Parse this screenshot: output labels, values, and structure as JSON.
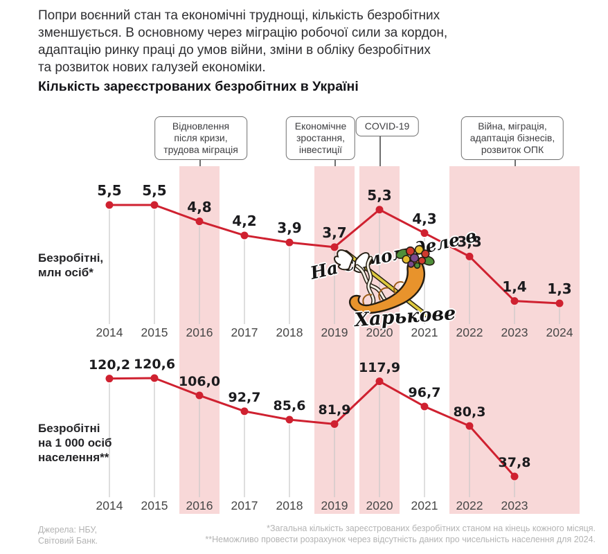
{
  "header": {
    "paragraph": "Попри воєнний стан та економічні труднощі, кількість безробітних\nзменшується. В основному через міграцію робочої сили за кордон,\nадаптацію ринку праці до умов війни, зміни в обліку безробітних\nта розвиток нових галузей економіки."
  },
  "title": "Кількість зареєстрованих безробітних в Україні",
  "colors": {
    "line_red": "#cf2130",
    "point_red": "#cf2130",
    "band_pink": "#f8d8d8",
    "label_dark": "#1b1b1e",
    "year_gray": "#474747",
    "guide_gray": "#c9c9c9",
    "box_border": "#6e6e6e",
    "footer_gray": "#b3b3b3"
  },
  "annotations": [
    {
      "lines": [
        "Відновлення",
        "після кризи,",
        "трудова міграція"
      ],
      "anchor_year": 2016
    },
    {
      "lines": [
        "Економічне",
        "зростання,",
        "інвестиції"
      ],
      "anchor_year": 2019
    },
    {
      "lines": [
        "COVID-19"
      ],
      "anchor_year": 2020
    },
    {
      "lines": [
        "Війна, міграція,",
        "адаптація бізнесів,",
        "розвиток ОПК"
      ],
      "anchor_year": 2023
    }
  ],
  "bands": [
    {
      "years": [
        2016,
        2016
      ]
    },
    {
      "years": [
        2019,
        2019
      ]
    },
    {
      "years": [
        2020,
        2020
      ]
    },
    {
      "years": [
        2022,
        2024
      ]
    }
  ],
  "chart_data": [
    {
      "type": "line",
      "name": "Безробітні, млн осіб",
      "side_label": "Безробітні,\nмлн осіб*",
      "categories": [
        2014,
        2015,
        2016,
        2017,
        2018,
        2019,
        2020,
        2021,
        2022,
        2023,
        2024
      ],
      "values": [
        5.5,
        5.5,
        4.8,
        4.2,
        3.9,
        3.7,
        5.3,
        4.3,
        3.3,
        1.4,
        1.3
      ],
      "point_labels": [
        "5,5",
        "5,5",
        "4,8",
        "4,2",
        "3,9",
        "3,7",
        "5,3",
        "4,3",
        "3,3",
        "1,4",
        "1,3"
      ],
      "ylim": [
        1.0,
        5.7
      ],
      "grid": false,
      "legend": "none"
    },
    {
      "type": "line",
      "name": "Безробітні на 1 000 осіб населення",
      "side_label": "Безробітні\nна 1 000 осіб\nнаселення**",
      "categories": [
        2014,
        2015,
        2016,
        2017,
        2018,
        2019,
        2020,
        2021,
        2022,
        2023
      ],
      "values": [
        120.2,
        120.6,
        106.0,
        92.7,
        85.6,
        81.9,
        117.9,
        96.7,
        80.3,
        37.8
      ],
      "point_labels": [
        "120,2",
        "120,6",
        "106,0",
        "92,7",
        "85,6",
        "81,9",
        "117,9",
        "96,7",
        "80,3",
        "37,8"
      ],
      "ylim": [
        30,
        125
      ],
      "grid": false,
      "legend": "none"
    }
  ],
  "watermark": {
    "line1": "На самом деле в",
    "line2": "Харькове"
  },
  "footer": {
    "sources": "Джерела: НБУ,\nСвітовий Банк.",
    "note1": "*Загальна кількість зареєстрованих безробітних станом на кінець кожного місяця.",
    "note2": "**Неможливо провести розрахунок через відсутність даних про чисельність населення для 2024."
  }
}
